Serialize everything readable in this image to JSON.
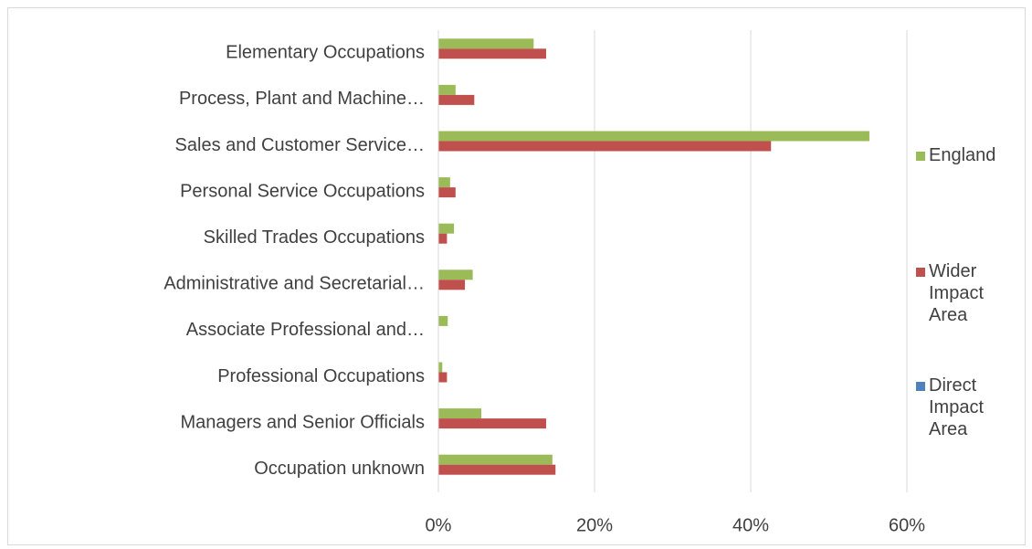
{
  "chart_data": {
    "type": "bar",
    "orientation": "horizontal",
    "categories": [
      "Elementary Occupations",
      "Process, Plant and Machine…",
      "Sales and Customer Service…",
      "Personal Service Occupations",
      "Skilled Trades Occupations",
      "Administrative and Secretarial…",
      "Associate Professional and…",
      "Professional Occupations",
      "Managers and Senior Officials",
      "Occupation unknown"
    ],
    "series": [
      {
        "name": "England",
        "color": "#9bbb59",
        "values": [
          12.2,
          2.2,
          55.2,
          1.5,
          2.0,
          4.4,
          1.2,
          0.5,
          5.5,
          14.6
        ]
      },
      {
        "name": "Wider Impact Area",
        "color": "#c0504d",
        "values": [
          13.8,
          4.6,
          42.6,
          2.2,
          1.1,
          3.4,
          0,
          1.1,
          13.8,
          15.0
        ]
      },
      {
        "name": "Direct Impact Area",
        "color": "#4f81bd",
        "values": [
          0,
          0,
          0,
          0,
          0,
          0,
          0,
          0,
          0,
          0
        ]
      }
    ],
    "xlim": [
      0,
      60
    ],
    "xticks": [
      {
        "value": 0,
        "label": "0%"
      },
      {
        "value": 20,
        "label": "20%"
      },
      {
        "value": 40,
        "label": "40%"
      },
      {
        "value": 60,
        "label": "60%"
      }
    ],
    "grid": true,
    "legend": "right"
  }
}
